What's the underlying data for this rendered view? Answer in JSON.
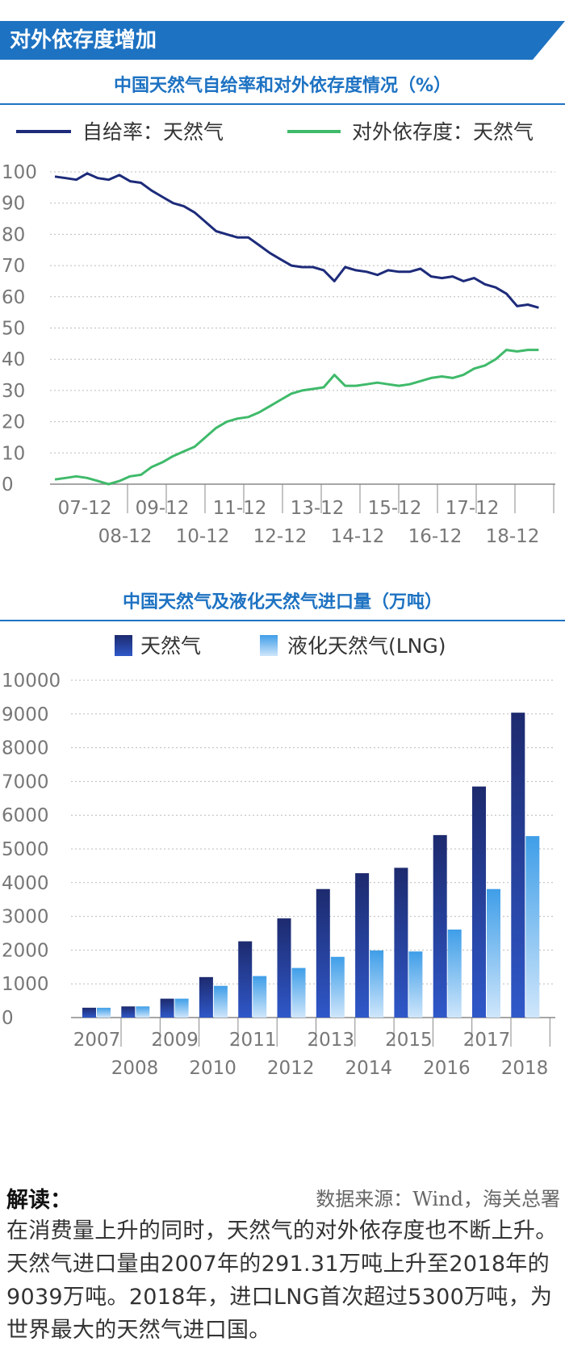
{
  "header": {
    "title": "对外依存度增加"
  },
  "colors": {
    "accent": "#1d72c2",
    "self_sufficiency": "#1d2b7a",
    "dependency": "#3fba6a",
    "gas_bar": "#1d2a6e",
    "lng_bar": "#3f9ee8"
  },
  "chart1": {
    "title": "中国天然气自给率和对外依存度情况（%）",
    "legend": [
      "自给率：天然气",
      "对外依存度：天然气"
    ],
    "y_ticks": [
      "100",
      "90",
      "80",
      "70",
      "60",
      "50",
      "40",
      "30",
      "20",
      "10",
      "0"
    ],
    "x_ticks_top": [
      "07-12",
      "09-12",
      "11-12",
      "13-12",
      "15-12",
      "17-12"
    ],
    "x_ticks_bottom": [
      "08-12",
      "10-12",
      "12-12",
      "14-12",
      "16-12",
      "18-12"
    ]
  },
  "chart2": {
    "title": "中国天然气及液化天然气进口量（万吨）",
    "legend": [
      "天然气",
      "液化天然气(LNG)"
    ],
    "y_ticks": [
      "10000",
      "9000",
      "8000",
      "7000",
      "6000",
      "5000",
      "4000",
      "3000",
      "2000",
      "1000",
      "0"
    ],
    "x_ticks_top": [
      "2007",
      "2009",
      "2011",
      "2013",
      "2015",
      "2017"
    ],
    "x_ticks_bottom": [
      "2008",
      "2010",
      "2012",
      "2014",
      "2016",
      "2018"
    ]
  },
  "chart_data": [
    {
      "type": "line",
      "title": "中国天然气自给率和对外依存度情况（%）",
      "xlabel": "",
      "ylabel": "",
      "ylim": [
        0,
        100
      ],
      "x": [
        "2007-06",
        "2007-09",
        "2007-12",
        "2008-03",
        "2008-06",
        "2008-09",
        "2008-12",
        "2009-03",
        "2009-06",
        "2009-09",
        "2009-12",
        "2010-03",
        "2010-06",
        "2010-09",
        "2010-12",
        "2011-03",
        "2011-06",
        "2011-09",
        "2011-12",
        "2012-03",
        "2012-06",
        "2012-09",
        "2012-12",
        "2013-03",
        "2013-06",
        "2013-09",
        "2013-12",
        "2014-03",
        "2014-06",
        "2014-09",
        "2014-12",
        "2015-03",
        "2015-06",
        "2015-09",
        "2015-12",
        "2016-03",
        "2016-06",
        "2016-09",
        "2016-12",
        "2017-03",
        "2017-06",
        "2017-09",
        "2017-12",
        "2018-03",
        "2018-06",
        "2018-09"
      ],
      "series": [
        {
          "name": "自给率：天然气",
          "values": [
            98.5,
            98,
            97.5,
            99.5,
            98,
            97.5,
            99,
            97,
            96.5,
            94,
            92,
            90,
            89,
            87,
            84,
            81,
            80,
            79,
            79,
            76.5,
            74,
            72,
            70,
            69.5,
            69.5,
            68.5,
            65,
            69.5,
            68.5,
            68,
            67,
            68.5,
            68,
            68,
            69,
            66.5,
            66,
            66.5,
            65,
            66,
            64,
            63,
            61,
            57,
            57.5,
            56.5
          ]
        },
        {
          "name": "对外依存度：天然气",
          "values": [
            1.5,
            2,
            2.5,
            2,
            1,
            0,
            1,
            2.5,
            3,
            5.5,
            7,
            9,
            10.5,
            12,
            15,
            18,
            20,
            21,
            21.5,
            23,
            25,
            27,
            29,
            30,
            30.5,
            31,
            35,
            31.5,
            31.5,
            32,
            32.5,
            32,
            31.5,
            32,
            33,
            34,
            34.5,
            34,
            35,
            37,
            38,
            40,
            43,
            42.5,
            43,
            43
          ]
        }
      ]
    },
    {
      "type": "bar",
      "title": "中国天然气及液化天然气进口量（万吨）",
      "xlabel": "",
      "ylabel": "",
      "ylim": [
        0,
        10000
      ],
      "categories": [
        "2007",
        "2008",
        "2009",
        "2010",
        "2011",
        "2012",
        "2013",
        "2014",
        "2015",
        "2016",
        "2017",
        "2018"
      ],
      "series": [
        {
          "name": "天然气",
          "values": [
            291.31,
            330,
            560,
            1200,
            2260,
            2940,
            3810,
            4280,
            4440,
            5410,
            6850,
            9039
          ]
        },
        {
          "name": "液化天然气(LNG)",
          "values": [
            290,
            330,
            560,
            940,
            1230,
            1470,
            1800,
            1990,
            1960,
            2610,
            3810,
            5380
          ]
        }
      ]
    }
  ],
  "note": {
    "heading": "解读：",
    "source": "数据来源：Wind，海关总署",
    "body": "在消费量上升的同时，天然气的对外依存度也不断上升。天然气进口量由2007年的291.31万吨上升至2018年的9039万吨。2018年，进口LNG首次超过5300万吨，为世界最大的天然气进口国。"
  }
}
